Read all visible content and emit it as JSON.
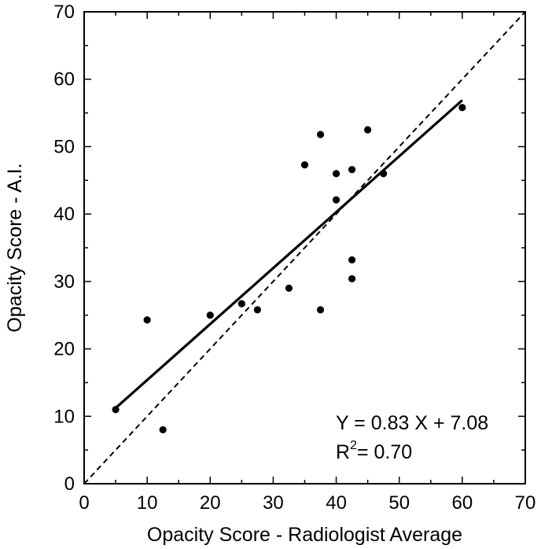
{
  "chart_data": {
    "type": "scatter",
    "title": "",
    "xlabel": "Opacity Score - Radiologist Average",
    "ylabel": "Opacity Score - A.I.",
    "xlim": [
      0,
      70
    ],
    "ylim": [
      0,
      70
    ],
    "xticks": [
      "0",
      "10",
      "20",
      "30",
      "40",
      "50",
      "60",
      "70"
    ],
    "yticks": [
      "0",
      "10",
      "20",
      "30",
      "40",
      "50",
      "60",
      "70"
    ],
    "grid": false,
    "points": [
      {
        "x": 5,
        "y": 11
      },
      {
        "x": 10,
        "y": 24.3
      },
      {
        "x": 12.5,
        "y": 8
      },
      {
        "x": 20,
        "y": 25
      },
      {
        "x": 25,
        "y": 26.7
      },
      {
        "x": 27.5,
        "y": 25.8
      },
      {
        "x": 32.5,
        "y": 29
      },
      {
        "x": 35,
        "y": 47.3
      },
      {
        "x": 37.5,
        "y": 51.8
      },
      {
        "x": 37.5,
        "y": 25.8
      },
      {
        "x": 40,
        "y": 46
      },
      {
        "x": 40,
        "y": 42.1
      },
      {
        "x": 42.5,
        "y": 46.6
      },
      {
        "x": 42.5,
        "y": 33.2
      },
      {
        "x": 42.5,
        "y": 30.4
      },
      {
        "x": 45,
        "y": 52.5
      },
      {
        "x": 47.5,
        "y": 46
      },
      {
        "x": 60,
        "y": 55.8
      }
    ],
    "fit_line": {
      "slope": 0.83,
      "intercept": 7.08,
      "x_range": [
        5,
        60
      ],
      "style": "solid"
    },
    "identity_line": {
      "x_range": [
        0,
        70
      ],
      "style": "dashed"
    },
    "annotations": {
      "equation": "Y = 0.83 X + 7.08",
      "r2_prefix": "R",
      "r2_superscript": "2",
      "r2_value": "= 0.70"
    }
  }
}
